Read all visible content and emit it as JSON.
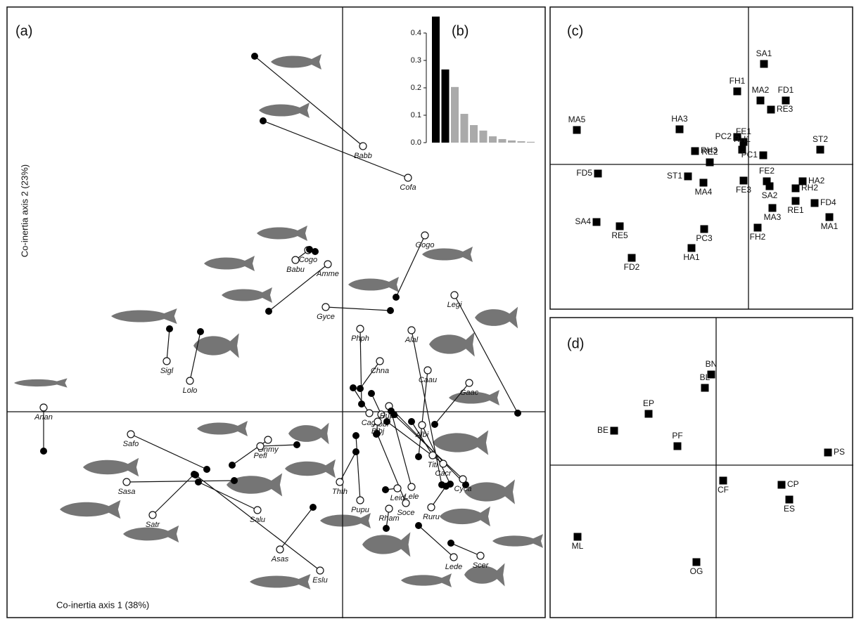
{
  "chart_data": [
    {
      "type": "pairs",
      "title": "(a)",
      "xlabel": "Co-inertia axis 1 (38%)",
      "ylabel": "Co-inertia axis 2 (23%)",
      "xlim": [
        -4.77,
        2.88
      ],
      "ylim": [
        -2.94,
        5.76
      ],
      "species": [
        {
          "label": "Anan",
          "open": [
            -4.25,
            0.06
          ],
          "filled": [
            -4.25,
            -0.56
          ]
        },
        {
          "label": "Babb",
          "open": [
            0.29,
            3.78
          ],
          "filled": [
            -1.25,
            5.06
          ]
        },
        {
          "label": "Cofa",
          "open": [
            0.93,
            3.33
          ],
          "filled": [
            -1.13,
            4.14
          ]
        },
        {
          "label": "Cogo",
          "open": [
            -0.49,
            2.3
          ],
          "filled": [
            -0.39,
            2.28
          ]
        },
        {
          "label": "Babu",
          "open": [
            -0.67,
            2.16
          ],
          "filled": [
            -0.47,
            2.31
          ]
        },
        {
          "label": "Amme",
          "open": [
            -0.21,
            2.1
          ],
          "filled": [
            -1.05,
            1.43
          ]
        },
        {
          "label": "Gogo",
          "open": [
            1.17,
            2.51
          ],
          "filled": [
            0.76,
            1.63
          ]
        },
        {
          "label": "Gyce",
          "open": [
            -0.24,
            1.49
          ],
          "filled": [
            0.68,
            1.44
          ]
        },
        {
          "label": "Legi",
          "open": [
            1.59,
            1.66
          ],
          "filled": [
            2.49,
            -0.02
          ]
        },
        {
          "label": "Phph",
          "open": [
            0.25,
            1.18
          ],
          "filled": [
            0.27,
            0.11
          ]
        },
        {
          "label": "Alal",
          "open": [
            0.98,
            1.16
          ],
          "filled": [
            1.41,
            -1.04
          ]
        },
        {
          "label": "Chna",
          "open": [
            0.53,
            0.72
          ],
          "filled": [
            0.25,
            0.33
          ]
        },
        {
          "label": "Caau",
          "open": [
            1.21,
            0.59
          ],
          "filled": [
            1.08,
            -0.64
          ]
        },
        {
          "label": "Gaac",
          "open": [
            1.8,
            0.41
          ],
          "filled": [
            1.31,
            -0.18
          ]
        },
        {
          "label": "Sigl",
          "open": [
            -2.5,
            0.72
          ],
          "filled": [
            -2.46,
            1.18
          ]
        },
        {
          "label": "Lolo",
          "open": [
            -2.17,
            0.44
          ],
          "filled": [
            -2.02,
            1.14
          ]
        },
        {
          "label": "Onmy",
          "open": [
            -1.06,
            -0.4
          ],
          "filled": [
            -1.57,
            -0.76
          ]
        },
        {
          "label": "Pefl",
          "open": [
            -1.17,
            -0.49
          ],
          "filled": [
            -0.65,
            -0.47
          ]
        },
        {
          "label": "Safo",
          "open": [
            -3.01,
            -0.32
          ],
          "filled": [
            -1.93,
            -0.82
          ]
        },
        {
          "label": "Sasa",
          "open": [
            -3.07,
            -1.0
          ],
          "filled": [
            -1.54,
            -0.98
          ]
        },
        {
          "label": "Satr",
          "open": [
            -2.7,
            -1.47
          ],
          "filled": [
            -2.11,
            -0.89
          ]
        },
        {
          "label": "Salu",
          "open": [
            -1.21,
            -1.4
          ],
          "filled": [
            -2.05,
            -1.0
          ]
        },
        {
          "label": "Asas",
          "open": [
            -0.89,
            -1.96
          ],
          "filled": [
            -0.42,
            -1.36
          ]
        },
        {
          "label": "Eslu",
          "open": [
            -0.32,
            -2.26
          ],
          "filled": [
            -2.09,
            -0.9
          ]
        },
        {
          "label": "Thth",
          "open": [
            -0.04,
            -1.0
          ],
          "filled": [
            0.19,
            -0.57
          ]
        },
        {
          "label": "Pupu",
          "open": [
            0.25,
            -1.26
          ],
          "filled": [
            0.19,
            -0.34
          ]
        },
        {
          "label": "Cagi",
          "open": [
            0.38,
            -0.02
          ],
          "filled": [
            0.15,
            0.34
          ]
        },
        {
          "label": "Abbr",
          "open": [
            0.55,
            -0.04
          ],
          "filled": [
            0.41,
            0.26
          ]
        },
        {
          "label": "Rupa",
          "open": [
            0.66,
            0.08
          ],
          "filled": [
            1.75,
            -1.04
          ]
        },
        {
          "label": "Albi",
          "open": [
            1.13,
            -0.19
          ],
          "filled": [
            1.53,
            -1.03
          ]
        },
        {
          "label": "Bibj",
          "open": [
            0.5,
            -0.14
          ],
          "filled": [
            0.48,
            -0.32
          ]
        },
        {
          "label": "Titi",
          "open": [
            1.28,
            -0.62
          ],
          "filled": [
            0.98,
            -0.14
          ]
        },
        {
          "label": "Cacr",
          "open": [
            1.43,
            -0.74
          ],
          "filled": [
            0.63,
            -0.14
          ]
        },
        {
          "label": "Cyca",
          "open": [
            1.71,
            -0.96
          ],
          "filled": [
            0.73,
            -0.04
          ]
        },
        {
          "label": "Leid",
          "open": [
            0.78,
            -1.09
          ],
          "filled": [
            0.61,
            -1.11
          ]
        },
        {
          "label": "Lele",
          "open": [
            0.98,
            -1.07
          ],
          "filled": [
            0.69,
            0.01
          ]
        },
        {
          "label": "Soce",
          "open": [
            0.9,
            -1.3
          ],
          "filled": [
            0.49,
            -0.31
          ]
        },
        {
          "label": "Ruru",
          "open": [
            1.26,
            -1.36
          ],
          "filled": [
            1.47,
            -1.06
          ]
        },
        {
          "label": "Rham",
          "open": [
            0.66,
            -1.38
          ],
          "filled": [
            0.62,
            -1.66
          ]
        },
        {
          "label": "Scer",
          "open": [
            1.96,
            -2.05
          ],
          "filled": [
            1.54,
            -1.87
          ]
        },
        {
          "label": "Lede",
          "open": [
            1.58,
            -2.07
          ],
          "filled": [
            1.08,
            -1.62
          ]
        }
      ]
    },
    {
      "type": "bar",
      "title": "(b)",
      "values": [
        0.46,
        0.267,
        0.203,
        0.105,
        0.064,
        0.044,
        0.023,
        0.013,
        0.008,
        0.005,
        0.003
      ],
      "colors": [
        "#000000",
        "#000000",
        "#aaaaaa",
        "#aaaaaa",
        "#aaaaaa",
        "#aaaaaa",
        "#aaaaaa",
        "#aaaaaa",
        "#aaaaaa",
        "#aaaaaa",
        "#aaaaaa"
      ],
      "ylim": [
        0,
        0.46
      ],
      "yticks": [
        {
          "value": 0,
          "label": "0.0"
        },
        0.1,
        0.2,
        0.3,
        0.4
      ]
    },
    {
      "type": "scatter",
      "title": "(c)",
      "xlim": [
        -2.82,
        1.49
      ],
      "ylim": [
        -2.06,
        2.24
      ],
      "points": [
        {
          "label": "SA1",
          "x": 0.22,
          "y": 1.43
        },
        {
          "label": "FH1",
          "x": -0.16,
          "y": 1.04
        },
        {
          "label": "MA2",
          "x": 0.17,
          "y": 0.91
        },
        {
          "label": "FD1",
          "x": 0.53,
          "y": 0.91
        },
        {
          "label": "RE3",
          "x": 0.32,
          "y": 0.78
        },
        {
          "label": "MA5",
          "x": -2.44,
          "y": 0.49
        },
        {
          "label": "HA3",
          "x": -0.98,
          "y": 0.5
        },
        {
          "label": "PC2",
          "x": -0.16,
          "y": 0.39
        },
        {
          "label": "FE1",
          "x": -0.07,
          "y": 0.32
        },
        {
          "label": "RH3",
          "x": -0.76,
          "y": 0.19
        },
        {
          "label": "RH1",
          "x": -0.09,
          "y": 0.21
        },
        {
          "label": "PC1",
          "x": 0.21,
          "y": 0.13
        },
        {
          "label": "ST2",
          "x": 1.02,
          "y": 0.21
        },
        {
          "label": "RE2",
          "x": -0.55,
          "y": 0.03
        },
        {
          "label": "FD5",
          "x": -2.14,
          "y": -0.13
        },
        {
          "label": "ST1",
          "x": -0.86,
          "y": -0.17
        },
        {
          "label": "MA4",
          "x": -0.64,
          "y": -0.26
        },
        {
          "label": "FE3",
          "x": -0.07,
          "y": -0.23
        },
        {
          "label": "FE2",
          "x": 0.26,
          "y": -0.24
        },
        {
          "label": "HA2",
          "x": 0.77,
          "y": -0.24
        },
        {
          "label": "SA2",
          "x": 0.3,
          "y": -0.31
        },
        {
          "label": "RH2",
          "x": 0.67,
          "y": -0.34
        },
        {
          "label": "RE1",
          "x": 0.67,
          "y": -0.52
        },
        {
          "label": "FD4",
          "x": 0.94,
          "y": -0.55
        },
        {
          "label": "MA3",
          "x": 0.34,
          "y": -0.62
        },
        {
          "label": "MA1",
          "x": 1.15,
          "y": -0.75
        },
        {
          "label": "SA4",
          "x": -2.16,
          "y": -0.82
        },
        {
          "label": "RE5",
          "x": -1.83,
          "y": -0.88
        },
        {
          "label": "FH2",
          "x": 0.13,
          "y": -0.9
        },
        {
          "label": "PC3",
          "x": -0.63,
          "y": -0.92
        },
        {
          "label": "HA1",
          "x": -0.81,
          "y": -1.19
        },
        {
          "label": "FD2",
          "x": -1.66,
          "y": -1.33
        }
      ]
    },
    {
      "type": "scatter",
      "title": "(d)",
      "xlim": [
        -2.36,
        1.95
      ],
      "ylim": [
        -2.18,
        2.1
      ],
      "points": [
        {
          "label": "BN",
          "x": -0.07,
          "y": 1.29
        },
        {
          "label": "BL",
          "x": -0.16,
          "y": 1.1
        },
        {
          "label": "EP",
          "x": -0.96,
          "y": 0.73
        },
        {
          "label": "BE",
          "x": -1.45,
          "y": 0.49
        },
        {
          "label": "PF",
          "x": -0.55,
          "y": 0.27
        },
        {
          "label": "PS",
          "x": 1.59,
          "y": 0.18
        },
        {
          "label": "CF",
          "x": 0.1,
          "y": -0.22
        },
        {
          "label": "CP",
          "x": 0.93,
          "y": -0.28
        },
        {
          "label": "ES",
          "x": 1.04,
          "y": -0.49
        },
        {
          "label": "ML",
          "x": -1.97,
          "y": -1.02
        },
        {
          "label": "OG",
          "x": -0.28,
          "y": -1.38
        }
      ]
    }
  ]
}
